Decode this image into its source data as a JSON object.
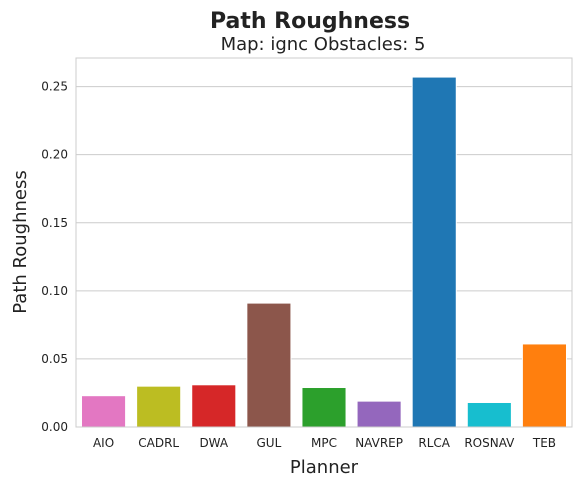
{
  "chart_data": {
    "type": "bar",
    "title": "Path Roughness",
    "subtitle": "Map: ignc Obstacles: 5",
    "xlabel": "Planner",
    "ylabel": "Path Roughness",
    "categories": [
      "AIO",
      "CADRL",
      "DWA",
      "GUL",
      "MPC",
      "NAVREP",
      "RLCA",
      "ROSNAV",
      "TEB"
    ],
    "values": [
      0.023,
      0.03,
      0.031,
      0.091,
      0.029,
      0.019,
      0.257,
      0.018,
      0.061
    ],
    "colors": [
      "#e377c2",
      "#bcbd22",
      "#d62728",
      "#8c564b",
      "#2ca02c",
      "#9467bd",
      "#1f77b4",
      "#17becf",
      "#ff7f0e"
    ],
    "ylim": [
      0,
      0.271
    ],
    "yticks": [
      0.0,
      0.05,
      0.1,
      0.15,
      0.2,
      0.25
    ],
    "ytick_labels": [
      "0.00",
      "0.05",
      "0.10",
      "0.15",
      "0.20",
      "0.25"
    ],
    "grid": "horizontal",
    "legend": "none"
  }
}
